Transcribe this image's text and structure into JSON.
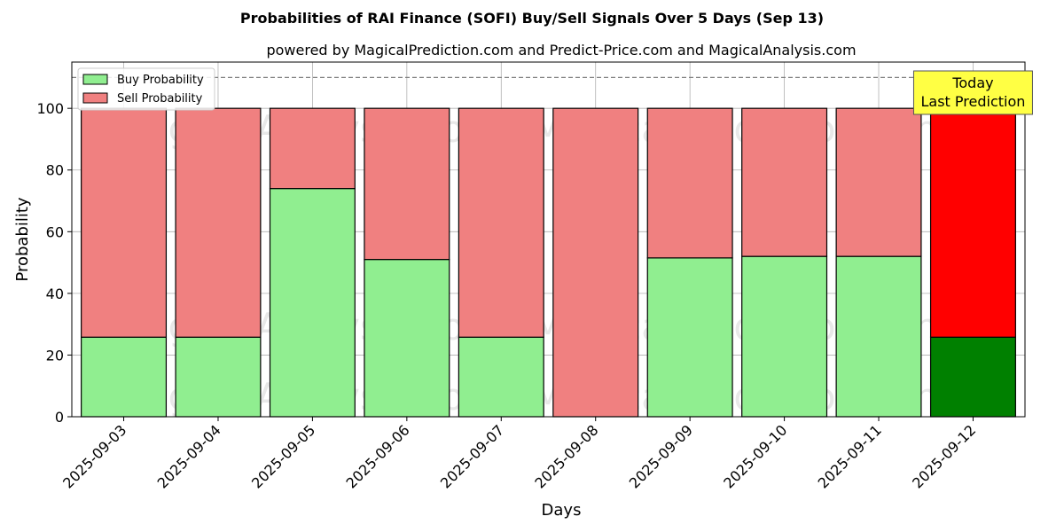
{
  "chart_data": {
    "type": "bar",
    "stacked": true,
    "title": "Probabilities of RAI Finance (SOFI) Buy/Sell Signals Over 5 Days (Sep 13)",
    "subtitle": "powered by MagicalPrediction.com and Predict-Price.com and MagicalAnalysis.com",
    "xlabel": "Days",
    "ylabel": "Probability",
    "ylim": [
      0,
      115
    ],
    "yticks": [
      0,
      20,
      40,
      60,
      80,
      100
    ],
    "categories": [
      "2025-09-03",
      "2025-09-04",
      "2025-09-05",
      "2025-09-06",
      "2025-09-07",
      "2025-09-08",
      "2025-09-09",
      "2025-09-10",
      "2025-09-11",
      "2025-09-12"
    ],
    "series": [
      {
        "name": "Buy Probability",
        "values": [
          25.8,
          25.8,
          74,
          51,
          25.8,
          0,
          51.5,
          52,
          52,
          25.8
        ],
        "color": "#90ee90",
        "highlight_color": "#008000"
      },
      {
        "name": "Sell Probability",
        "values": [
          74.2,
          74.2,
          26,
          49,
          74.2,
          100,
          48.5,
          48,
          48,
          74.2
        ],
        "color": "#f08080",
        "highlight_color": "#ff0000"
      }
    ],
    "highlight_index": 9,
    "reference_line": {
      "y": 110,
      "style": "dashed",
      "color": "#808080"
    },
    "annotation": {
      "lines": [
        "Today",
        "Last Prediction"
      ],
      "background": "#ffff44"
    },
    "legend": {
      "placement": "top-left"
    },
    "grid": true,
    "watermarks": [
      "MagicalAnalysis.com",
      "MagicalPrediction.com"
    ]
  }
}
